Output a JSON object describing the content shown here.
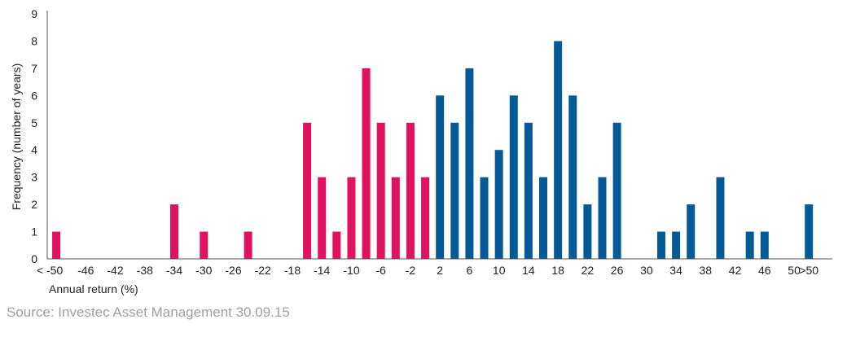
{
  "chart_data": {
    "type": "bar",
    "title": "",
    "xlabel": "Annual return (%)",
    "ylabel": "Frequency (number of years)",
    "ylim": [
      0,
      9
    ],
    "yticks": [
      "0",
      "1",
      "2",
      "3",
      "4",
      "5",
      "6",
      "7",
      "8",
      "9"
    ],
    "grid": false,
    "categories": [
      "< -50",
      "-48",
      "-46",
      "-44",
      "-42",
      "-40",
      "-38",
      "-36",
      "-34",
      "-32",
      "-30",
      "-28",
      "-26",
      "-24",
      "-22",
      "-20",
      "-18",
      "-16",
      "-14",
      "-12",
      "-10",
      "-8",
      "-6",
      "-4",
      "-2",
      "0",
      "2",
      "4",
      "6",
      "8",
      "10",
      "12",
      "14",
      "16",
      "18",
      "20",
      "22",
      "24",
      "26",
      "28",
      "30",
      "32",
      "34",
      "36",
      "38",
      "40",
      "42",
      "44",
      "46",
      "48",
      "50",
      ">50"
    ],
    "values": [
      1,
      0,
      0,
      0,
      0,
      0,
      0,
      0,
      2,
      0,
      1,
      0,
      0,
      1,
      0,
      0,
      0,
      5,
      3,
      1,
      3,
      7,
      5,
      3,
      5,
      3,
      6,
      5,
      7,
      3,
      4,
      6,
      5,
      3,
      8,
      6,
      2,
      3,
      5,
      0,
      0,
      1,
      1,
      2,
      0,
      3,
      0,
      1,
      1,
      0,
      0,
      2
    ],
    "xtick_labels": [
      "< -50",
      "-46",
      "-42",
      "-38",
      "-34",
      "-30",
      "-26",
      "-22",
      "-18",
      "-14",
      "-10",
      "-6",
      "-2",
      "2",
      "6",
      "10",
      "14",
      "18",
      "22",
      "26",
      "30",
      "34",
      "38",
      "42",
      "46",
      "50",
      ">50"
    ],
    "xtick_indices": [
      0,
      2,
      4,
      6,
      8,
      10,
      12,
      14,
      16,
      18,
      20,
      22,
      24,
      26,
      28,
      30,
      32,
      34,
      36,
      38,
      40,
      42,
      44,
      46,
      48,
      50,
      51
    ],
    "colors": {
      "negative": "#e0115f",
      "positive": "#045a96",
      "axis": "#555555"
    },
    "negative_until_index": 25
  },
  "source": "Source: Investec Asset Management 30.09.15"
}
